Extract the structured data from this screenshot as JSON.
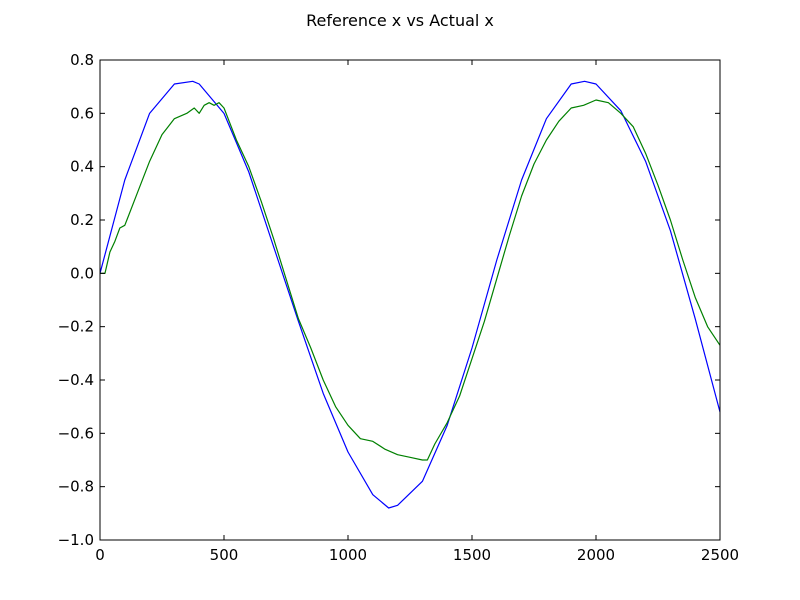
{
  "chart_data": {
    "type": "line",
    "title": "Reference x vs Actual x",
    "xlabel": "",
    "ylabel": "",
    "xlim": [
      0,
      2500
    ],
    "ylim": [
      -1.0,
      0.8
    ],
    "grid": false,
    "x_ticks": [
      0,
      500,
      1000,
      1500,
      2000,
      2500
    ],
    "x_tick_labels": [
      "0",
      "500",
      "1000",
      "1500",
      "2000",
      "2500"
    ],
    "y_ticks": [
      -1.0,
      -0.8,
      -0.6,
      -0.4,
      -0.2,
      0.0,
      0.2,
      0.4,
      0.6,
      0.8
    ],
    "y_tick_labels": [
      "−1.0",
      "−0.8",
      "−0.6",
      "−0.4",
      "−0.2",
      "0.0",
      "0.2",
      "0.4",
      "0.6",
      "0.8"
    ],
    "series": [
      {
        "color": "#0000ff",
        "x": [
          0,
          100,
          200,
          300,
          374,
          400,
          500,
          600,
          700,
          800,
          900,
          1000,
          1100,
          1164,
          1200,
          1300,
          1400,
          1500,
          1600,
          1700,
          1800,
          1900,
          1954,
          2000,
          2100,
          2200,
          2300,
          2400,
          2500
        ],
        "y": [
          0.0,
          0.35,
          0.6,
          0.71,
          0.72,
          0.71,
          0.6,
          0.38,
          0.1,
          -0.18,
          -0.45,
          -0.67,
          -0.83,
          -0.88,
          -0.87,
          -0.78,
          -0.57,
          -0.28,
          0.05,
          0.35,
          0.58,
          0.71,
          0.72,
          0.71,
          0.61,
          0.42,
          0.16,
          -0.17,
          -0.52
        ]
      },
      {
        "color": "#008000",
        "x": [
          0,
          20,
          40,
          60,
          80,
          100,
          150,
          200,
          250,
          300,
          350,
          380,
          400,
          420,
          440,
          460,
          480,
          500,
          550,
          600,
          650,
          700,
          750,
          800,
          850,
          900,
          950,
          1000,
          1050,
          1100,
          1150,
          1200,
          1250,
          1300,
          1320,
          1350,
          1400,
          1450,
          1500,
          1550,
          1600,
          1650,
          1700,
          1750,
          1800,
          1850,
          1900,
          1950,
          2000,
          2050,
          2100,
          2150,
          2200,
          2250,
          2300,
          2350,
          2400,
          2450,
          2500
        ],
        "y": [
          0.0,
          0.0,
          0.08,
          0.12,
          0.17,
          0.18,
          0.3,
          0.42,
          0.52,
          0.58,
          0.6,
          0.62,
          0.6,
          0.63,
          0.64,
          0.63,
          0.64,
          0.62,
          0.5,
          0.4,
          0.27,
          0.13,
          -0.02,
          -0.17,
          -0.28,
          -0.4,
          -0.5,
          -0.57,
          -0.62,
          -0.63,
          -0.66,
          -0.68,
          -0.69,
          -0.7,
          -0.7,
          -0.64,
          -0.56,
          -0.46,
          -0.32,
          -0.18,
          -0.02,
          0.14,
          0.29,
          0.41,
          0.5,
          0.57,
          0.62,
          0.63,
          0.65,
          0.64,
          0.6,
          0.55,
          0.45,
          0.33,
          0.2,
          0.05,
          -0.09,
          -0.2,
          -0.27
        ]
      }
    ]
  }
}
